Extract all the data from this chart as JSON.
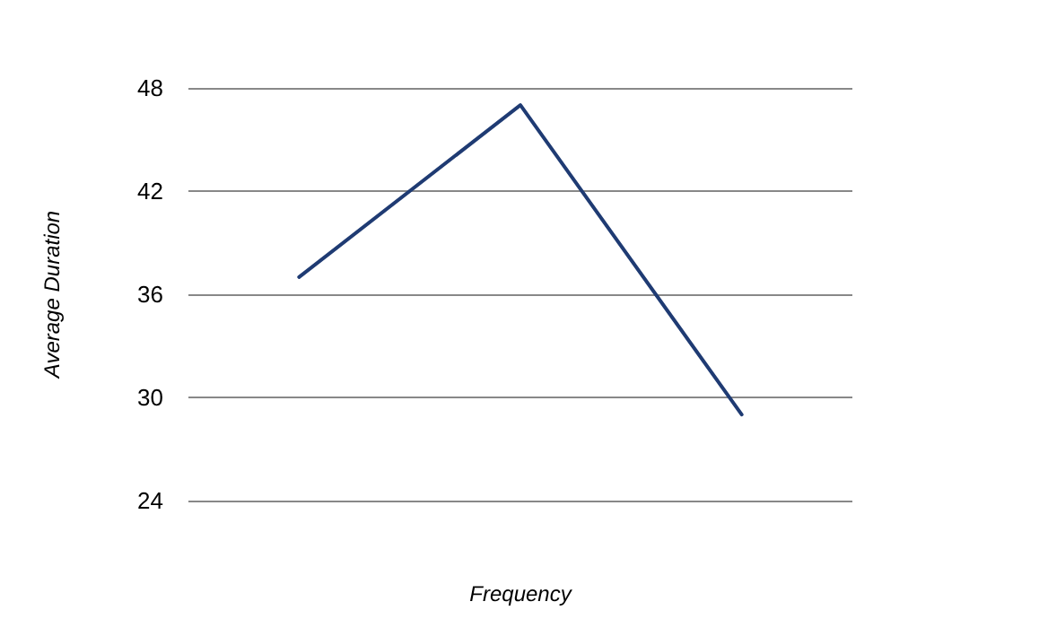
{
  "chart_data": {
    "type": "line",
    "xlabel": "Frequency",
    "ylabel": "Average Duration",
    "categories": [
      null,
      null,
      null
    ],
    "series": [
      {
        "color": "#1f3b73",
        "values": [
          37,
          47,
          29
        ]
      }
    ],
    "ylim": [
      24,
      48
    ],
    "yticks": [
      24,
      30,
      36,
      42,
      48
    ],
    "grid": "y",
    "marker": "none"
  }
}
